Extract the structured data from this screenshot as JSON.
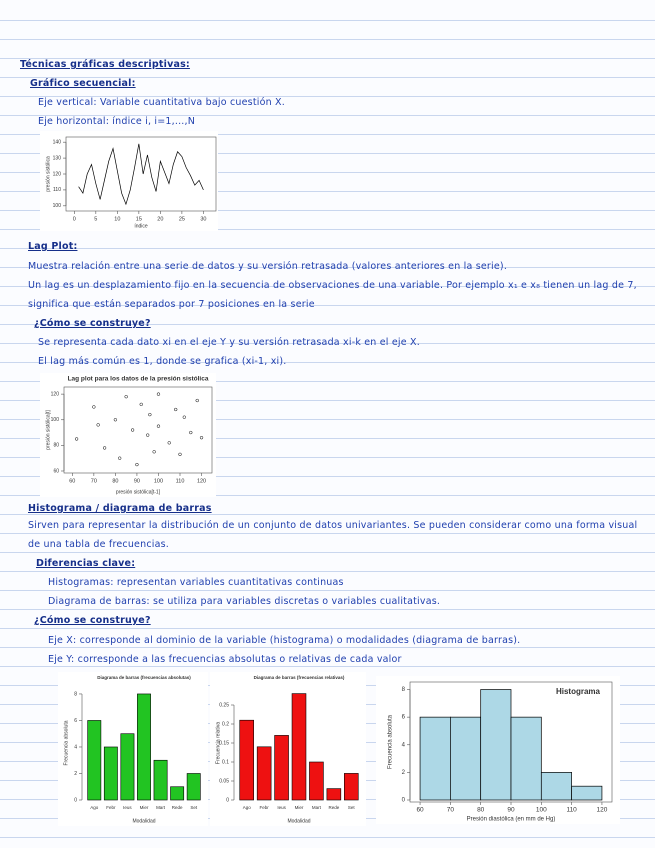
{
  "document": {
    "title": "Técnicas gráficas descriptivas:",
    "sequential": {
      "heading": "Gráfico secuencial:",
      "lines": [
        "Eje vertical: Variable cuantitativa bajo cuestión X.",
        "Eje horizontal: índice i, i=1,...,N"
      ]
    },
    "lag": {
      "heading": "Lag Plot:",
      "lines": [
        "Muestra relación entre una serie de datos y su versión retrasada (valores anteriores en la serie).",
        "Un lag es un desplazamiento fijo en la secuencia de observaciones de una variable. Por ejemplo x₁ e x₈ tienen un lag de 7, significa que están separados por 7 posiciones en la serie",
        "¿Cómo se construye?",
        "Se representa cada dato xi en el eje Y y su versión retrasada xi-k en el eje X.",
        "El lag más común es 1, donde se grafica (xi-1, xi)."
      ]
    },
    "histogram": {
      "heading": "Histograma / diagrama de barras",
      "lines": [
        "Sirven para representar la distribución de un conjunto de datos univariantes. Se pueden considerar como una forma visual de una tabla de frecuencias.",
        "Diferencias clave:",
        "Histogramas: representan variables cuantitativas continuas",
        "Diagrama de barras: se utiliza para variables discretas o variables cualitativas.",
        "¿Cómo se construye?",
        "Eje X: corresponde al dominio de la variable (histograma) o modalidades (diagrama de barras).",
        "Eje Y: corresponde a las frecuencias absolutas o relativas de cada valor"
      ]
    }
  },
  "chart_data": [
    {
      "type": "line",
      "x_label": "índice",
      "y_label": "presión sistólica",
      "color": "#000000",
      "x": [
        1,
        2,
        3,
        4,
        5,
        6,
        7,
        8,
        9,
        10,
        11,
        12,
        13,
        14,
        15,
        16,
        17,
        18,
        19,
        20,
        21,
        22,
        23,
        24,
        25,
        26,
        27,
        28,
        29,
        30
      ],
      "values": [
        112,
        108,
        120,
        126,
        114,
        104,
        116,
        128,
        136,
        122,
        108,
        101,
        110,
        124,
        139,
        120,
        132,
        118,
        109,
        128,
        121,
        114,
        126,
        134,
        131,
        124,
        119,
        113,
        116,
        110
      ],
      "xlim": [
        -1,
        32
      ],
      "xticks": [
        0,
        5,
        10,
        15,
        20,
        25,
        30
      ],
      "ylim": [
        98,
        142
      ],
      "yticks": [
        100,
        110,
        120,
        130,
        140
      ]
    },
    {
      "type": "scatter",
      "title": "Lag plot para los datos de la presión sistólica",
      "x_label": "presión sistólica[t-1]",
      "y_label": "presión sistólica[t]",
      "color": "#000000",
      "x": [
        62,
        70,
        75,
        80,
        82,
        85,
        88,
        90,
        92,
        95,
        98,
        100,
        100,
        105,
        108,
        110,
        112,
        115,
        118,
        120,
        72,
        96
      ],
      "values": [
        85,
        110,
        78,
        100,
        70,
        118,
        92,
        65,
        112,
        88,
        75,
        120,
        95,
        82,
        108,
        73,
        102,
        90,
        115,
        86,
        96,
        104
      ],
      "xlim": [
        58,
        123
      ],
      "xticks": [
        60,
        70,
        80,
        90,
        100,
        110,
        120
      ],
      "ylim": [
        60,
        124
      ],
      "yticks": [
        60,
        80,
        100,
        120
      ]
    },
    {
      "type": "bar",
      "title": "Diagrama de barras (frecuencias absolutas)",
      "x_label": "Modalidad",
      "y_label": "Frecuencia absoluta",
      "color": "#22c422",
      "categories": [
        "Ago",
        "Febr",
        "Ieus",
        "Mier",
        "Mart",
        "Rede",
        "Set"
      ],
      "values": [
        6,
        4,
        5,
        8,
        3,
        1,
        2
      ],
      "ylim": [
        0,
        8.6
      ],
      "yticks": [
        0,
        2,
        4,
        6,
        8
      ]
    },
    {
      "type": "bar",
      "title": "Diagrama de barras (frecuencias relativas)",
      "x_label": "Modalidad",
      "y_label": "Frecuencia relativa",
      "color": "#ee1111",
      "categories": [
        "Ago",
        "Febr",
        "Ieus",
        "Mier",
        "Mart",
        "Rede",
        "Set"
      ],
      "values": [
        0.21,
        0.14,
        0.17,
        0.28,
        0.1,
        0.03,
        0.07
      ],
      "ylim": [
        0,
        0.3
      ],
      "yticks": [
        0,
        0.05,
        0.1,
        0.15,
        0.2,
        0.25
      ]
    },
    {
      "type": "histogram",
      "annotation": "Histograma",
      "x_label": "Presión diastólica (en mm de Hg)",
      "y_label": "Frecuencia absoluta",
      "color": "#add8e6",
      "bins": [
        60,
        70,
        80,
        90,
        100,
        110,
        120
      ],
      "values": [
        6,
        6,
        8,
        6,
        2,
        1
      ],
      "xlim": [
        58,
        122
      ],
      "xticks": [
        60,
        70,
        80,
        90,
        100,
        110,
        120
      ],
      "ylim": [
        0,
        8.4
      ],
      "yticks": [
        0,
        2,
        4,
        6,
        8
      ]
    }
  ]
}
